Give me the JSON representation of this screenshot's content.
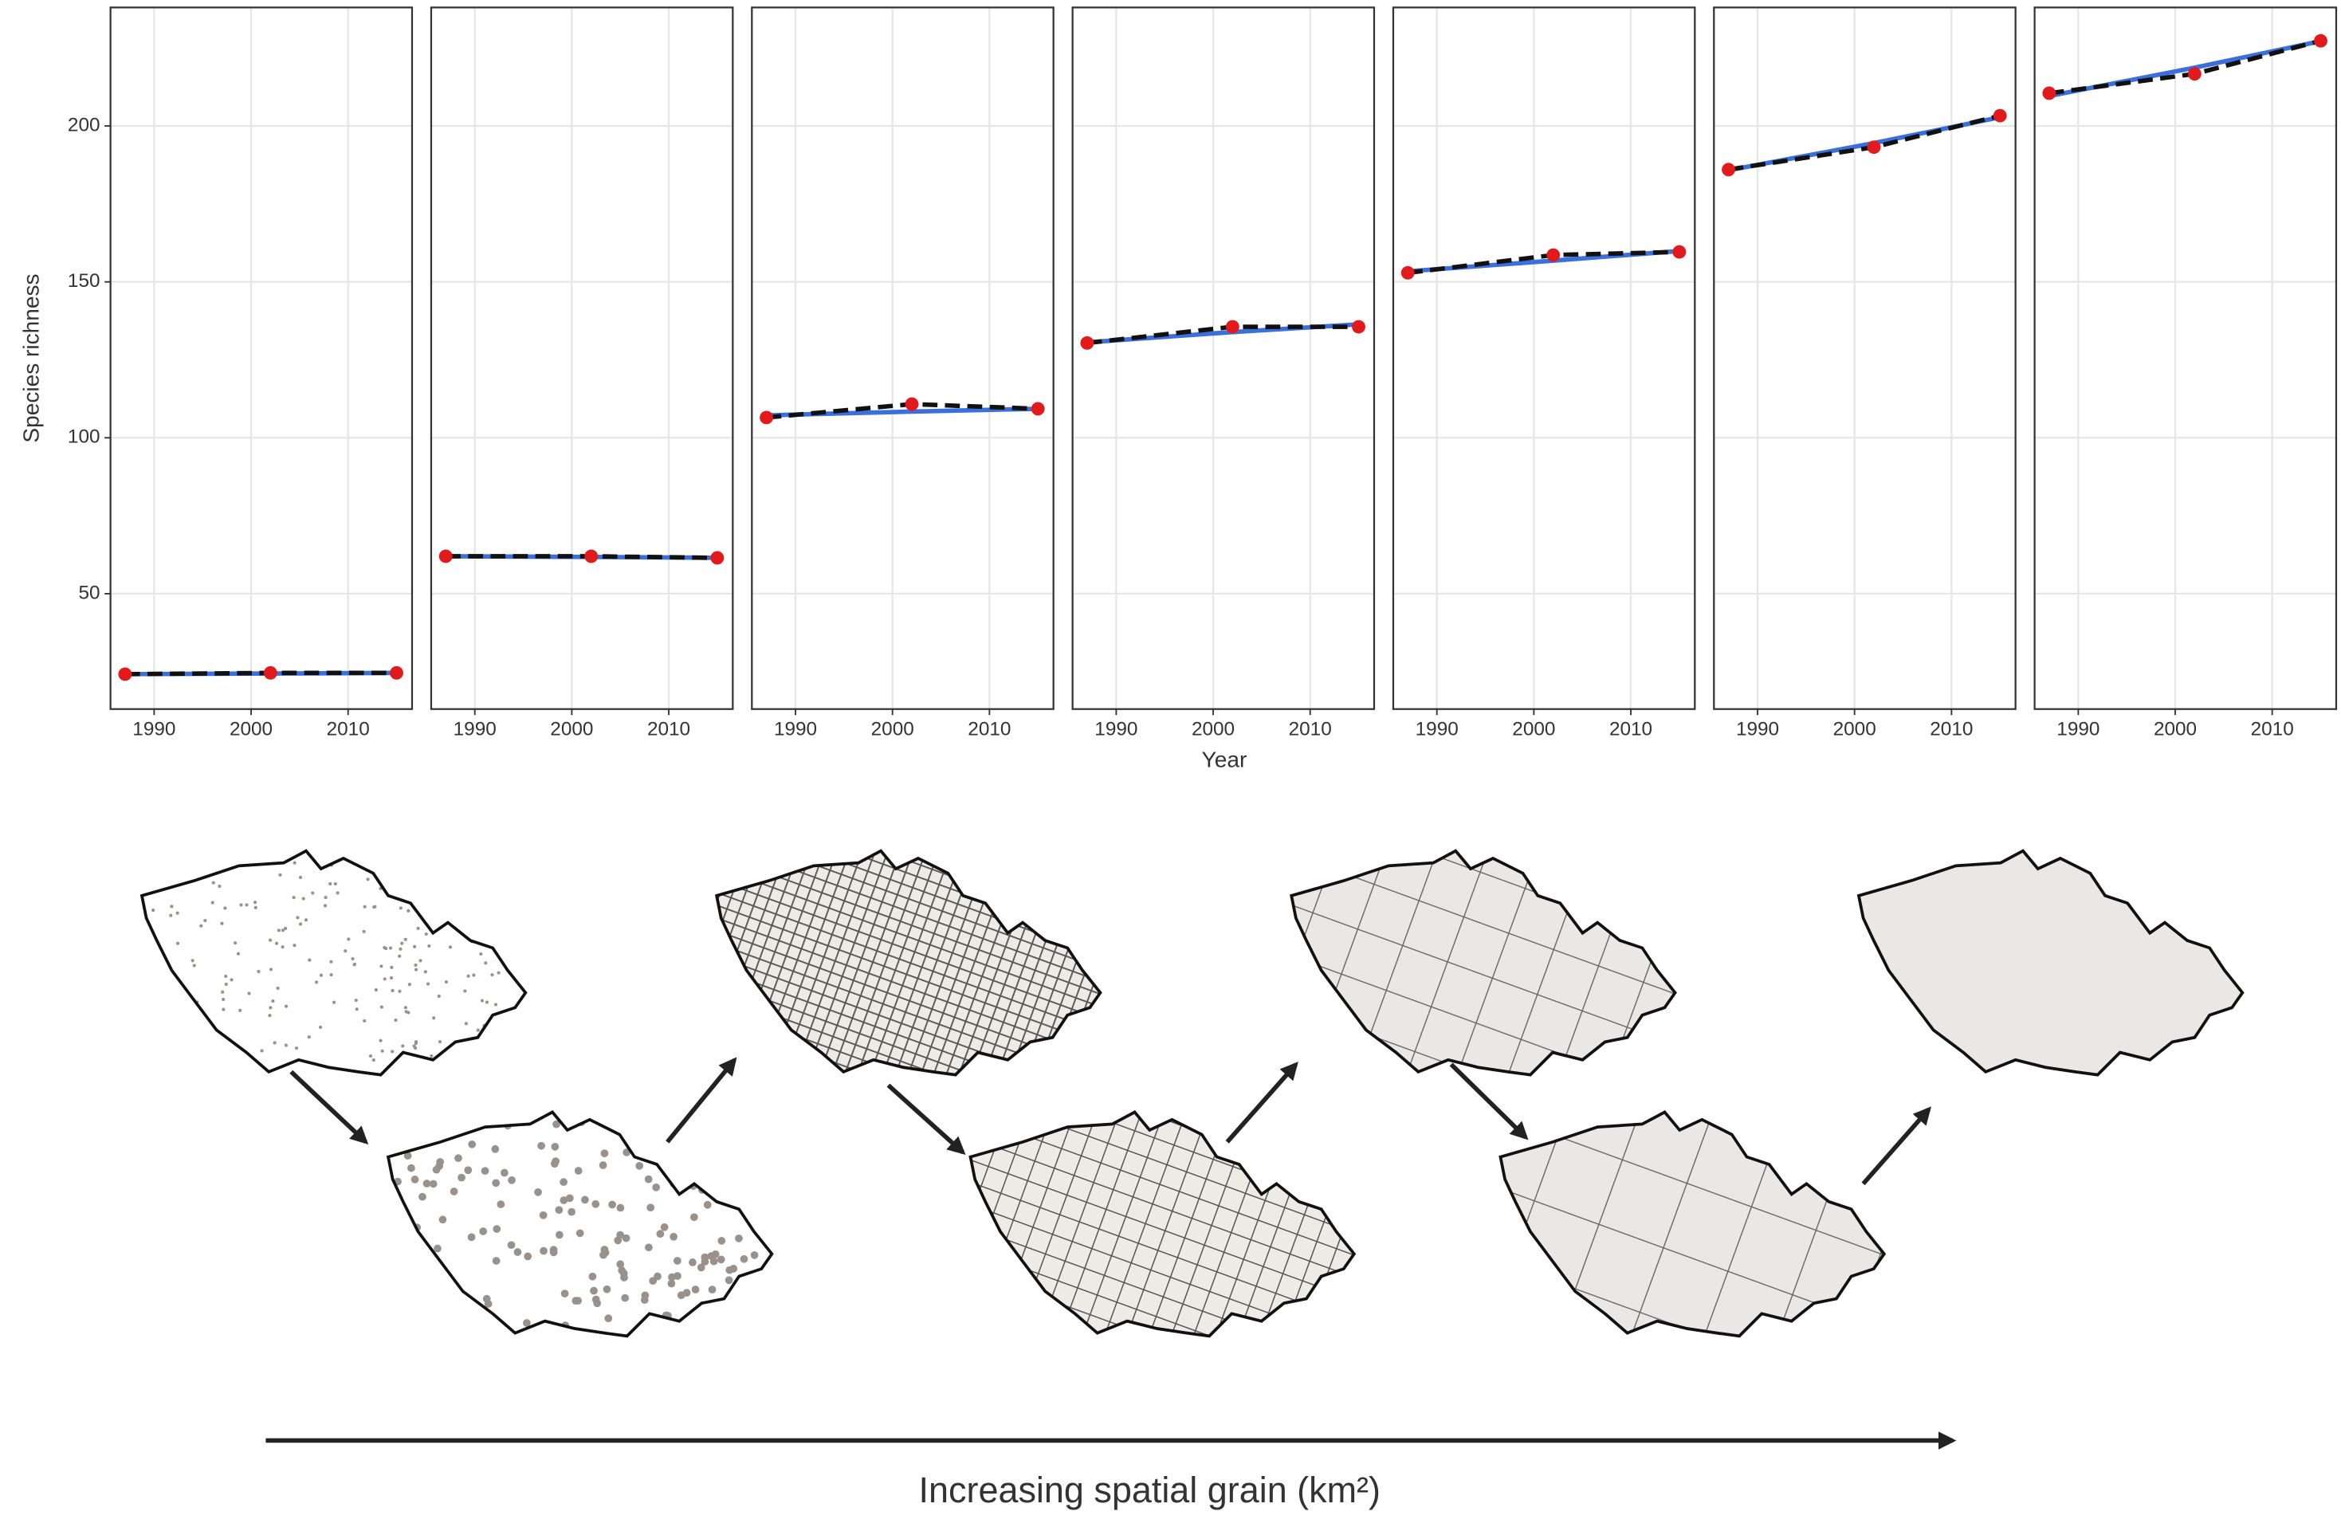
{
  "chart_data": {
    "type": "line",
    "ylabel": "Species richness",
    "xlabel": "Year",
    "x": [
      1987,
      2002,
      2015
    ],
    "xlim": [
      1985.5,
      2016.6
    ],
    "ylim": [
      13,
      238
    ],
    "xticks": [
      1990,
      2000,
      2010
    ],
    "yticks": [
      50,
      100,
      150,
      200
    ],
    "grid": true,
    "panels": [
      {
        "series": [
          {
            "style": "points",
            "color": "#e31a1c",
            "values": [
              24.2,
              24.6,
              24.6
            ]
          },
          {
            "style": "fit",
            "color": "#3a6fdc",
            "values": [
              24.2,
              24.4,
              24.6
            ]
          }
        ]
      },
      {
        "series": [
          {
            "style": "points",
            "color": "#e31a1c",
            "values": [
              62,
              62,
              61.5
            ]
          },
          {
            "style": "fit",
            "color": "#3a6fdc",
            "values": [
              62,
              61.8,
              61.5
            ]
          }
        ]
      },
      {
        "series": [
          {
            "style": "points",
            "color": "#e31a1c",
            "values": [
              106.5,
              110.8,
              109.3
            ]
          },
          {
            "style": "fit",
            "color": "#3a6fdc",
            "values": [
              107.2,
              108.4,
              109.3
            ]
          }
        ]
      },
      {
        "series": [
          {
            "style": "points",
            "color": "#e31a1c",
            "values": [
              130.4,
              135.6,
              135.6
            ]
          },
          {
            "style": "fit",
            "color": "#3a6fdc",
            "values": [
              130.6,
              133.9,
              136.4
            ]
          }
        ]
      },
      {
        "series": [
          {
            "style": "points",
            "color": "#e31a1c",
            "values": [
              152.9,
              158.6,
              159.6
            ]
          },
          {
            "style": "fit",
            "color": "#3a6fdc",
            "values": [
              153.4,
              156.8,
              159.9
            ]
          }
        ]
      },
      {
        "series": [
          {
            "style": "points",
            "color": "#e31a1c",
            "values": [
              186,
              193.2,
              203.3
            ]
          },
          {
            "style": "fit",
            "color": "#3a6fdc",
            "values": [
              185.8,
              194.5,
              202.8
            ]
          }
        ]
      },
      {
        "series": [
          {
            "style": "points",
            "color": "#e31a1c",
            "values": [
              210.5,
              216.7,
              227.3
            ]
          },
          {
            "style": "fit",
            "color": "#3a6fdc",
            "values": [
              209.6,
              218.7,
              227.2
            ]
          }
        ]
      }
    ]
  },
  "diagram": {
    "caption": "Increasing spatial grain (km²)"
  }
}
